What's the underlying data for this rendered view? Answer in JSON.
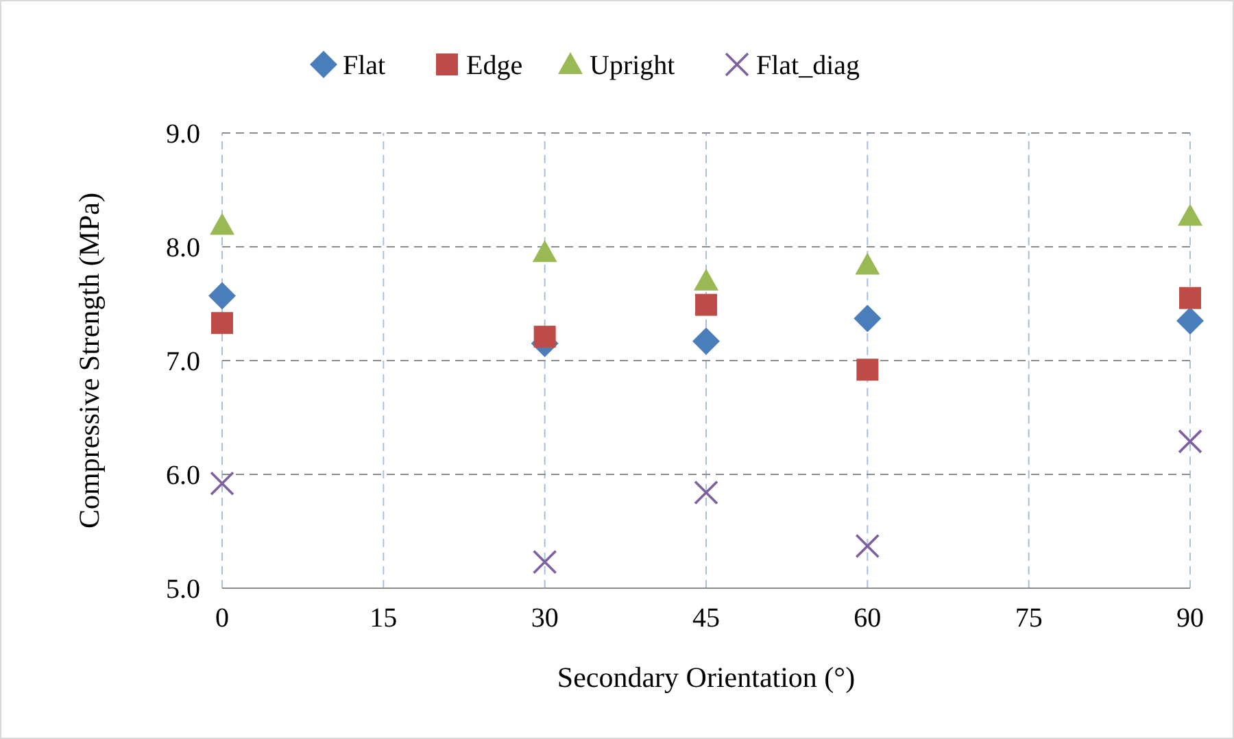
{
  "chart_data": {
    "type": "scatter",
    "xlabel": "Secondary Orientation (°)",
    "ylabel": "Compressive Strength (MPa)",
    "x": [
      0,
      30,
      45,
      60,
      90
    ],
    "series": [
      {
        "name": "Flat",
        "color": "#4a7ebb",
        "marker": "diamond",
        "values": [
          7.57,
          7.15,
          7.17,
          7.37,
          7.35
        ]
      },
      {
        "name": "Edge",
        "color": "#be4b48",
        "marker": "square",
        "values": [
          7.33,
          7.21,
          7.49,
          6.92,
          7.55
        ]
      },
      {
        "name": "Upright",
        "color": "#98b954",
        "marker": "triangle",
        "values": [
          8.19,
          7.95,
          7.7,
          7.84,
          8.27
        ]
      },
      {
        "name": "Flat_diag",
        "color": "#7d60a0",
        "marker": "cross",
        "values": [
          5.92,
          5.23,
          5.84,
          5.37,
          6.29
        ]
      }
    ],
    "xlim": [
      0,
      90
    ],
    "xticks": [
      0,
      15,
      30,
      45,
      60,
      75,
      90
    ],
    "ylim": [
      5,
      9
    ],
    "yticks": [
      {
        "value": 5,
        "label": "5.0"
      },
      {
        "value": 6,
        "label": "6.0"
      },
      {
        "value": 7,
        "label": "7.0"
      },
      {
        "value": 8,
        "label": "8.0"
      },
      {
        "value": 9,
        "label": "9.0"
      }
    ],
    "grid": true,
    "legend": "top"
  }
}
